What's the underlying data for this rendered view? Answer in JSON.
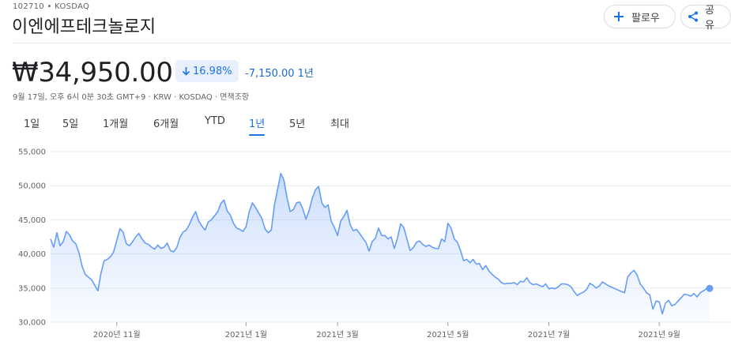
{
  "header": {
    "ticker_line": "102710 • KOSDAQ",
    "company_name": "이엔에프테크놀로지",
    "follow_label": "팔로우",
    "share_label": "공유"
  },
  "quote": {
    "price": "₩34,950.00",
    "change_percent": "16.98%",
    "change_direction": "down",
    "change_absolute": "-7,150.00",
    "change_period": "1년",
    "meta": "9월 17일, 오후 6시 0분 30초 GMT+9 · KRW · KOSDAQ · 면책조항"
  },
  "tabs": [
    {
      "label": "1일",
      "active": false
    },
    {
      "label": "5일",
      "active": false
    },
    {
      "label": "1개월",
      "active": false
    },
    {
      "label": "6개월",
      "active": false
    },
    {
      "label": "YTD",
      "active": false
    },
    {
      "label": "1년",
      "active": true
    },
    {
      "label": "5년",
      "active": false
    },
    {
      "label": "최대",
      "active": false
    }
  ],
  "colors": {
    "line": "#669df6",
    "fill": "#e8f0fe",
    "accent": "#1a73e8"
  },
  "chart_data": {
    "type": "area",
    "ylim": [
      30000,
      55000
    ],
    "y_ticks": [
      "55,000",
      "50,000",
      "45,000",
      "40,000",
      "35,000",
      "30,000"
    ],
    "x_ticks": [
      "2020년 11월",
      "2021년 1월",
      "2021년 3월",
      "2021년 5월",
      "2021년 7월",
      "2021년 9월"
    ],
    "x_tick_index": [
      21,
      62,
      91,
      126,
      158,
      193
    ],
    "grid": true,
    "values": [
      42200,
      41000,
      43100,
      41200,
      41800,
      43300,
      42800,
      41900,
      41500,
      40200,
      38200,
      37000,
      36600,
      36200,
      35400,
      34600,
      37200,
      39000,
      39200,
      39600,
      40300,
      42000,
      43700,
      43200,
      41500,
      41200,
      41800,
      42500,
      43000,
      42200,
      41600,
      41400,
      41000,
      40700,
      41300,
      40800,
      41000,
      41600,
      40500,
      40300,
      40900,
      42400,
      43200,
      43500,
      44300,
      45400,
      46200,
      44800,
      44100,
      43500,
      44700,
      45000,
      45600,
      46200,
      47400,
      47900,
      46300,
      45700,
      44500,
      43800,
      43600,
      43300,
      44000,
      46200,
      47500,
      46800,
      46000,
      45200,
      43700,
      43100,
      43500,
      47200,
      49500,
      51800,
      50800,
      48200,
      46200,
      46500,
      47500,
      47600,
      46600,
      45100,
      46400,
      48200,
      49400,
      49900,
      47500,
      46800,
      47200,
      44800,
      43900,
      42700,
      44800,
      45500,
      46400,
      44300,
      43400,
      43600,
      43000,
      42300,
      41700,
      40400,
      41800,
      42300,
      43800,
      42700,
      42700,
      42200,
      42500,
      40800,
      42300,
      44400,
      43900,
      42200,
      40500,
      40900,
      41700,
      41900,
      41400,
      41100,
      41300,
      41000,
      40800,
      40800,
      42200,
      41800,
      44500,
      43800,
      42200,
      41700,
      40500,
      39000,
      39200,
      38700,
      39200,
      38500,
      38600,
      37700,
      38300,
      37500,
      37000,
      36600,
      36300,
      35800,
      35600,
      35700,
      35700,
      35800,
      35500,
      36000,
      35900,
      36500,
      35800,
      35500,
      35600,
      35400,
      35200,
      35600,
      34900,
      35000,
      34900,
      35200,
      35600,
      35600,
      35500,
      35200,
      34500,
      33900,
      34200,
      34400,
      34800,
      35700,
      35400,
      35000,
      35300,
      35900,
      35600,
      35300,
      35100,
      34900,
      34700,
      34500,
      34300,
      36600,
      37200,
      37600,
      36900,
      35600,
      35000,
      34300,
      34000,
      31900,
      33100,
      33000,
      31200,
      32800,
      33200,
      32400,
      32600,
      33100,
      33600,
      34100,
      34000,
      33800,
      34200,
      33700,
      34300,
      34600,
      34900,
      34950
    ]
  }
}
